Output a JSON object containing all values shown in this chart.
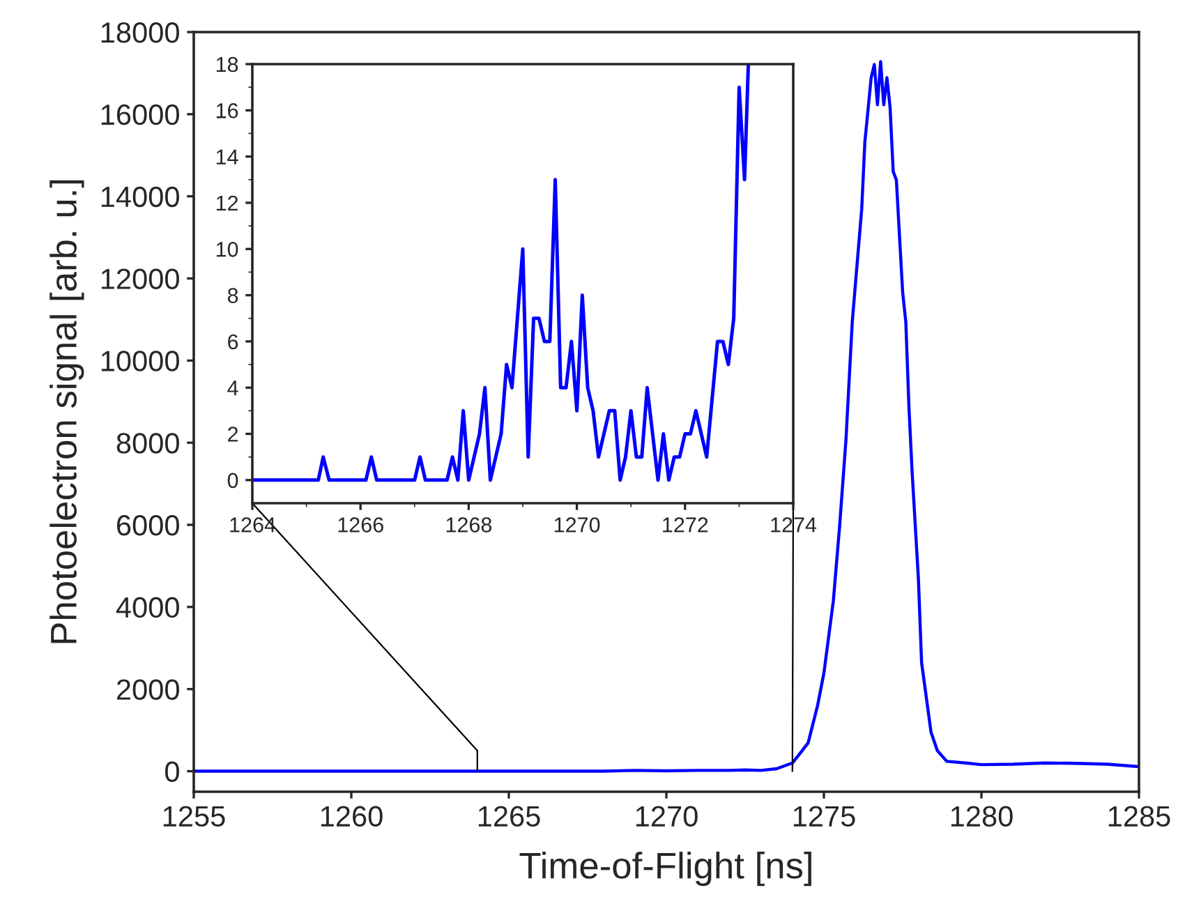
{
  "chart_data": [
    {
      "type": "line",
      "xlabel": "Time-of-Flight [ns]",
      "ylabel": "Photoelectron signal [arb. u.]",
      "xlim": [
        1255,
        1285
      ],
      "ylim": [
        -500,
        18000
      ],
      "xticks": [
        1255,
        1260,
        1265,
        1270,
        1275,
        1280,
        1285
      ],
      "yticks": [
        0,
        2000,
        4000,
        6000,
        8000,
        10000,
        12000,
        14000,
        16000,
        18000
      ],
      "grid": false,
      "legend": false,
      "series": [
        {
          "color": "#0000ff",
          "x": [
            1255,
            1268,
            1269,
            1270,
            1271,
            1272,
            1272.5,
            1273,
            1273.5,
            1274.0,
            1274.3,
            1274.5,
            1274.8,
            1275.0,
            1275.3,
            1275.5,
            1275.7,
            1275.9,
            1276.0,
            1276.2,
            1276.3,
            1276.5,
            1276.6,
            1276.7,
            1276.8,
            1276.9,
            1277.0,
            1277.1,
            1277.2,
            1277.3,
            1277.5,
            1277.6,
            1277.7,
            1277.8,
            1278.0,
            1278.1,
            1278.4,
            1278.6,
            1278.9,
            1279.5,
            1280,
            1281,
            1282,
            1283,
            1284,
            1285
          ],
          "values": [
            0,
            0,
            20,
            10,
            20,
            20,
            30,
            20,
            60,
            200,
            490,
            690,
            1600,
            2390,
            4150,
            5980,
            8070,
            10940,
            11860,
            13690,
            15320,
            16890,
            17210,
            16230,
            17280,
            16230,
            16890,
            16170,
            14600,
            14400,
            11660,
            10940,
            8850,
            7290,
            4680,
            2650,
            950,
            500,
            240,
            200,
            160,
            170,
            200,
            190,
            170,
            110
          ]
        }
      ]
    },
    {
      "type": "line",
      "xlim": [
        1264,
        1274
      ],
      "ylim": [
        -1,
        18
      ],
      "xticks": [
        1264,
        1266,
        1268,
        1270,
        1272,
        1274
      ],
      "yticks": [
        0,
        2,
        4,
        6,
        8,
        10,
        12,
        14,
        16,
        18
      ],
      "grid": false,
      "legend": false,
      "series": [
        {
          "color": "#0000ff",
          "x": [
            1264,
            1265.22,
            1265.31,
            1265.42,
            1266.1,
            1266.2,
            1266.3,
            1267.0,
            1267.1,
            1267.2,
            1267.6,
            1267.7,
            1267.8,
            1267.9,
            1268.0,
            1268.2,
            1268.3,
            1268.4,
            1268.6,
            1268.7,
            1268.8,
            1269.0,
            1269.1,
            1269.2,
            1269.3,
            1269.4,
            1269.5,
            1269.6,
            1269.7,
            1269.8,
            1269.9,
            1270.0,
            1270.1,
            1270.2,
            1270.3,
            1270.4,
            1270.6,
            1270.7,
            1270.8,
            1270.9,
            1271.0,
            1271.1,
            1271.2,
            1271.3,
            1271.4,
            1271.5,
            1271.6,
            1271.7,
            1271.8,
            1271.9,
            1272.0,
            1272.1,
            1272.2,
            1272.4,
            1272.6,
            1272.7,
            1272.8,
            1272.9,
            1273.0,
            1273.1,
            1273.17
          ],
          "values": [
            0,
            0,
            1,
            0,
            0,
            1,
            0,
            0,
            1,
            0,
            0,
            1,
            0,
            3,
            0,
            2,
            4,
            0,
            2,
            5,
            4,
            10,
            1,
            7,
            7,
            6,
            6,
            13,
            4,
            4,
            6,
            3,
            8,
            4,
            3,
            1,
            3,
            3,
            0,
            1,
            3,
            1,
            1,
            4,
            2,
            0,
            2,
            0,
            1,
            1,
            2,
            2,
            3,
            1,
            6,
            6,
            5,
            7,
            17,
            13,
            18
          ]
        }
      ]
    }
  ]
}
